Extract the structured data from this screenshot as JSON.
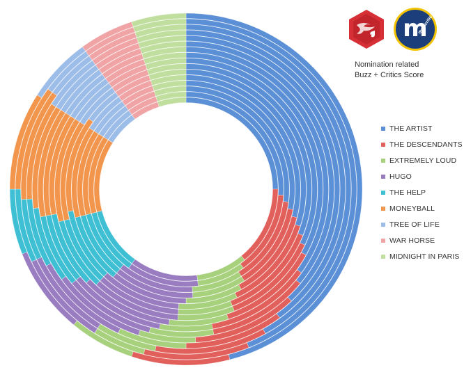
{
  "subtitle": {
    "line1": "Nomination related",
    "line2": "Buzz + Critics Score"
  },
  "logos": [
    {
      "name": "awards-site-logo",
      "color": "#d62f36"
    },
    {
      "name": "metacritic-logo",
      "text": "metacritic",
      "color": "#1c3f7c",
      "ring": "#f3c300"
    }
  ],
  "chart_data": {
    "type": "radial-stacked-bar",
    "grid": false,
    "legend_position": "right",
    "series": [
      {
        "name": "THE ARTIST",
        "color": "#5b8fd6"
      },
      {
        "name": "THE DESCENDANTS",
        "color": "#e2605b"
      },
      {
        "name": "EXTREMELY LOUD",
        "color": "#a7d17c"
      },
      {
        "name": "HUGO",
        "color": "#9a7cc1"
      },
      {
        "name": "THE HELP",
        "color": "#3fbfd3"
      },
      {
        "name": "MONEYBALL",
        "color": "#f2964e"
      },
      {
        "name": "TREE OF LIFE",
        "color": "#9dbde9"
      },
      {
        "name": "WAR HORSE",
        "color": "#f0a4a6"
      },
      {
        "name": "MIDNIGHT IN PARIS",
        "color": "#c0df9f"
      }
    ],
    "ring_shares": [
      [
        46,
        9,
        6,
        8,
        6,
        9,
        6,
        5,
        5
      ],
      [
        44,
        10,
        5,
        9,
        7,
        10,
        5,
        5,
        5
      ],
      [
        42,
        11,
        6,
        9,
        6,
        11,
        5,
        5,
        5
      ],
      [
        40,
        10,
        7,
        10,
        7,
        10,
        6,
        5,
        5
      ],
      [
        38,
        11,
        6,
        10,
        8,
        11,
        6,
        5,
        5
      ],
      [
        36,
        11,
        7,
        10,
        8,
        12,
        6,
        5,
        5
      ],
      [
        35,
        12,
        6,
        11,
        8,
        12,
        6,
        5,
        5
      ],
      [
        33,
        12,
        7,
        11,
        9,
        12,
        6,
        5,
        5
      ],
      [
        32,
        12,
        7,
        11,
        9,
        13,
        6,
        5,
        5
      ],
      [
        31,
        13,
        7,
        11,
        9,
        13,
        6,
        5,
        5
      ],
      [
        30,
        13,
        8,
        11,
        10,
        13,
        5,
        5,
        5
      ],
      [
        29,
        13,
        8,
        11,
        10,
        13,
        6,
        5,
        5
      ],
      [
        28,
        13,
        8,
        12,
        10,
        13,
        6,
        5,
        5
      ],
      [
        27,
        14,
        8,
        12,
        10,
        13,
        6,
        5,
        5
      ],
      [
        26,
        14,
        8,
        12,
        11,
        13,
        6,
        5,
        5
      ],
      [
        25,
        14,
        9,
        12,
        11,
        13,
        6,
        5,
        5
      ]
    ]
  }
}
